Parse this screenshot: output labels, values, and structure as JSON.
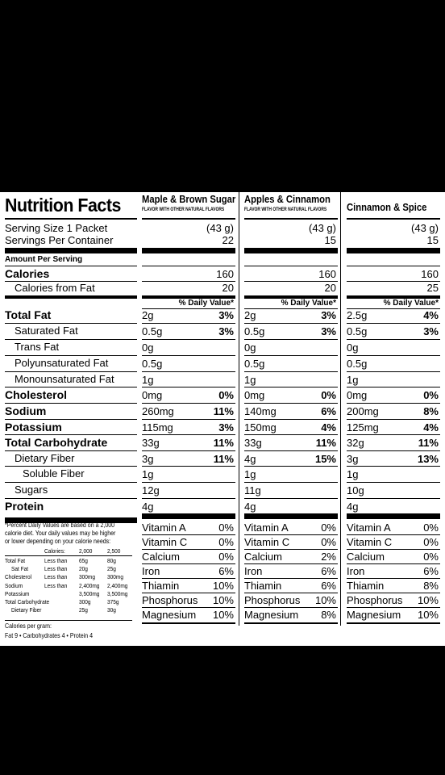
{
  "title": "Nutrition Facts",
  "labels": {
    "serving_size": "Serving Size 1 Packet",
    "servings_per_container": "Servings Per Container",
    "amount_per_serving": "Amount Per Serving",
    "calories": "Calories",
    "calories_from_fat": "Calories from Fat",
    "total_fat": "Total Fat",
    "saturated_fat": "Saturated Fat",
    "trans_fat": "Trans Fat",
    "polyunsaturated_fat": "Polyunsaturated Fat",
    "monounsaturated_fat": "Monounsaturated Fat",
    "cholesterol": "Cholesterol",
    "sodium": "Sodium",
    "potassium": "Potassium",
    "total_carbohydrate": "Total Carbohydrate",
    "dietary_fiber": "Dietary Fiber",
    "soluble_fiber": "Soluble Fiber",
    "sugars": "Sugars",
    "protein": "Protein",
    "daily_value_header": "% Daily Value*"
  },
  "vitamin_labels": [
    "Vitamin A",
    "Vitamin C",
    "Calcium",
    "Iron",
    "Thiamin",
    "Phosphorus",
    "Magnesium"
  ],
  "columns": [
    {
      "name": "Maple & Brown Sugar",
      "subtitle": "FLAVOR WITH OTHER NATURAL FLAVORS",
      "serving_size": "(43 g)",
      "servings": "22",
      "calories": "160",
      "calories_from_fat": "20",
      "total_fat": "2g",
      "total_fat_dv": "3%",
      "saturated_fat": "0.5g",
      "saturated_fat_dv": "3%",
      "trans_fat": "0g",
      "polyunsaturated_fat": "0.5g",
      "monounsaturated_fat": "1g",
      "cholesterol": "0mg",
      "cholesterol_dv": "0%",
      "sodium": "260mg",
      "sodium_dv": "11%",
      "potassium": "115mg",
      "potassium_dv": "3%",
      "total_carbohydrate": "33g",
      "total_carbohydrate_dv": "11%",
      "dietary_fiber": "3g",
      "dietary_fiber_dv": "11%",
      "soluble_fiber": "1g",
      "sugars": "12g",
      "protein": "4g",
      "vitamins": [
        "0%",
        "0%",
        "0%",
        "6%",
        "10%",
        "10%",
        "10%"
      ]
    },
    {
      "name": "Apples & Cinnamon",
      "subtitle": "FLAVOR WITH OTHER NATURAL FLAVORS",
      "serving_size": "(43 g)",
      "servings": "15",
      "calories": "160",
      "calories_from_fat": "20",
      "total_fat": "2g",
      "total_fat_dv": "3%",
      "saturated_fat": "0.5g",
      "saturated_fat_dv": "3%",
      "trans_fat": "0g",
      "polyunsaturated_fat": "0.5g",
      "monounsaturated_fat": "1g",
      "cholesterol": "0mg",
      "cholesterol_dv": "0%",
      "sodium": "140mg",
      "sodium_dv": "6%",
      "potassium": "150mg",
      "potassium_dv": "4%",
      "total_carbohydrate": "33g",
      "total_carbohydrate_dv": "11%",
      "dietary_fiber": "4g",
      "dietary_fiber_dv": "15%",
      "soluble_fiber": "1g",
      "sugars": "11g",
      "protein": "4g",
      "vitamins": [
        "0%",
        "0%",
        "2%",
        "6%",
        "6%",
        "10%",
        "8%"
      ]
    },
    {
      "name": "Cinnamon & Spice",
      "subtitle": "",
      "serving_size": "(43 g)",
      "servings": "15",
      "calories": "160",
      "calories_from_fat": "25",
      "total_fat": "2.5g",
      "total_fat_dv": "4%",
      "saturated_fat": "0.5g",
      "saturated_fat_dv": "3%",
      "trans_fat": "0g",
      "polyunsaturated_fat": "0.5g",
      "monounsaturated_fat": "1g",
      "cholesterol": "0mg",
      "cholesterol_dv": "0%",
      "sodium": "200mg",
      "sodium_dv": "8%",
      "potassium": "125mg",
      "potassium_dv": "4%",
      "total_carbohydrate": "32g",
      "total_carbohydrate_dv": "11%",
      "dietary_fiber": "3g",
      "dietary_fiber_dv": "13%",
      "soluble_fiber": "1g",
      "sugars": "10g",
      "protein": "4g",
      "vitamins": [
        "0%",
        "0%",
        "0%",
        "6%",
        "8%",
        "10%",
        "10%"
      ]
    }
  ],
  "footnote": {
    "text": [
      "*Percent Daily Values are based on a 2,000",
      "calorie diet. Your daily values may be higher",
      "or lower depending on your calorie needs:"
    ],
    "table_header": [
      "Calories:",
      "2,000",
      "2,500"
    ],
    "table_rows": [
      [
        "Total Fat",
        "Less than",
        "65g",
        "80g"
      ],
      [
        "Sat Fat",
        "Less than",
        "20g",
        "25g"
      ],
      [
        "Cholesterol",
        "Less than",
        "300mg",
        "300mg"
      ],
      [
        "Sodium",
        "Less than",
        "2,400mg",
        "2,400mg"
      ],
      [
        "Potassium",
        "",
        "3,500mg",
        "3,500mg"
      ],
      [
        "Total Carbohydrate",
        "",
        "300g",
        "375g"
      ],
      [
        "Dietary Fiber",
        "",
        "25g",
        "30g"
      ]
    ],
    "calories_per_gram_title": "Calories per gram:",
    "calories_per_gram": "Fat 9  •  Carbohydrates 4  •  Protein 4"
  }
}
